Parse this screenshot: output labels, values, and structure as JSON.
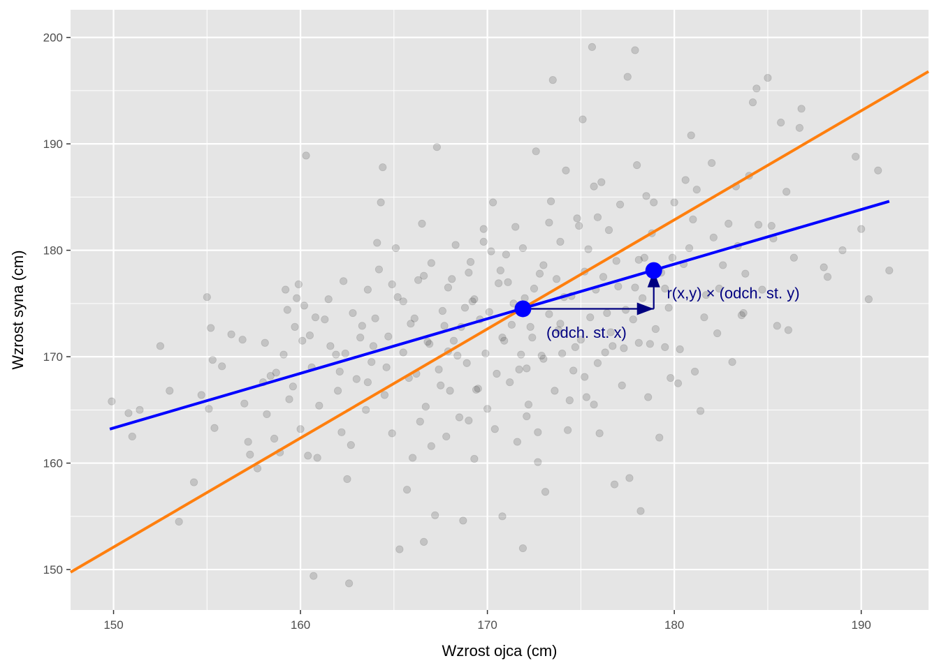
{
  "chart_data": {
    "type": "scatter",
    "xlabel": "Wzrost ojca (cm)",
    "ylabel": "Wzrost syna (cm)",
    "xlim": [
      147.7,
      193.6
    ],
    "ylim": [
      146.2,
      202.6
    ],
    "x_ticks": [
      150,
      160,
      170,
      180,
      190
    ],
    "y_ticks": [
      150,
      160,
      170,
      180,
      190,
      200
    ],
    "x_tick_labels": [
      "150",
      "160",
      "170",
      "180",
      "190"
    ],
    "y_tick_labels": [
      "150",
      "160",
      "170",
      "180",
      "190",
      "200"
    ],
    "grid": true,
    "colors": {
      "panel_bg": "#e5e5e5",
      "grid_major": "#ffffff",
      "points": "#000000",
      "regression": "#0000ff",
      "sd_line": "#ff7f0e",
      "annotation": "#000080"
    },
    "points": {
      "opacity": 0.15,
      "values": [
        [
          149.9,
          165.8
        ],
        [
          150.8,
          164.7
        ],
        [
          151.0,
          162.5
        ],
        [
          151.4,
          165.0
        ],
        [
          152.5,
          171.0
        ],
        [
          153.0,
          166.8
        ],
        [
          153.5,
          154.5
        ],
        [
          154.3,
          158.2
        ],
        [
          154.7,
          166.4
        ],
        [
          155.0,
          175.6
        ],
        [
          155.1,
          165.1
        ],
        [
          155.2,
          172.7
        ],
        [
          155.3,
          169.7
        ],
        [
          155.4,
          163.3
        ],
        [
          155.8,
          169.1
        ],
        [
          156.3,
          172.1
        ],
        [
          156.9,
          171.6
        ],
        [
          157.0,
          165.6
        ],
        [
          157.2,
          162.0
        ],
        [
          157.3,
          160.8
        ],
        [
          157.7,
          159.5
        ],
        [
          158.0,
          167.6
        ],
        [
          158.1,
          171.3
        ],
        [
          158.2,
          164.6
        ],
        [
          158.4,
          168.2
        ],
        [
          158.6,
          162.3
        ],
        [
          158.9,
          161.0
        ],
        [
          159.1,
          170.2
        ],
        [
          159.2,
          176.3
        ],
        [
          159.3,
          174.4
        ],
        [
          159.4,
          166.0
        ],
        [
          159.6,
          167.2
        ],
        [
          159.7,
          172.8
        ],
        [
          159.8,
          175.5
        ],
        [
          159.9,
          176.8
        ],
        [
          160.0,
          163.2
        ],
        [
          160.1,
          171.5
        ],
        [
          160.2,
          174.8
        ],
        [
          160.3,
          188.9
        ],
        [
          160.5,
          172.0
        ],
        [
          160.6,
          169.0
        ],
        [
          160.7,
          149.4
        ],
        [
          160.9,
          160.5
        ],
        [
          161.0,
          165.4
        ],
        [
          161.3,
          173.5
        ],
        [
          161.6,
          171.0
        ],
        [
          161.9,
          170.2
        ],
        [
          162.0,
          166.8
        ],
        [
          162.2,
          162.9
        ],
        [
          162.3,
          177.1
        ],
        [
          162.4,
          170.3
        ],
        [
          162.5,
          158.5
        ],
        [
          162.6,
          148.7
        ],
        [
          162.8,
          174.1
        ],
        [
          163.0,
          167.9
        ],
        [
          163.2,
          171.8
        ],
        [
          163.5,
          165.0
        ],
        [
          163.6,
          176.3
        ],
        [
          163.8,
          169.5
        ],
        [
          164.0,
          173.6
        ],
        [
          164.2,
          178.2
        ],
        [
          164.3,
          184.5
        ],
        [
          164.4,
          187.8
        ],
        [
          164.5,
          166.4
        ],
        [
          164.7,
          171.9
        ],
        [
          164.9,
          162.8
        ],
        [
          165.1,
          180.2
        ],
        [
          165.2,
          175.6
        ],
        [
          165.3,
          151.9
        ],
        [
          165.5,
          170.4
        ],
        [
          165.7,
          157.5
        ],
        [
          165.8,
          168.0
        ],
        [
          166.0,
          160.5
        ],
        [
          166.1,
          173.6
        ],
        [
          166.3,
          177.2
        ],
        [
          166.5,
          182.5
        ],
        [
          166.6,
          152.6
        ],
        [
          166.7,
          165.3
        ],
        [
          166.9,
          171.2
        ],
        [
          167.0,
          178.8
        ],
        [
          167.2,
          155.1
        ],
        [
          167.3,
          189.7
        ],
        [
          167.4,
          168.8
        ],
        [
          167.6,
          174.3
        ],
        [
          167.8,
          162.5
        ],
        [
          167.9,
          176.5
        ],
        [
          168.0,
          166.8
        ],
        [
          168.2,
          171.5
        ],
        [
          168.3,
          180.5
        ],
        [
          168.5,
          164.3
        ],
        [
          168.6,
          172.8
        ],
        [
          168.7,
          154.6
        ],
        [
          168.9,
          169.4
        ],
        [
          169.0,
          177.9
        ],
        [
          169.2,
          175.2
        ],
        [
          169.3,
          160.4
        ],
        [
          169.5,
          167.0
        ],
        [
          169.6,
          173.5
        ],
        [
          169.8,
          182.0
        ],
        [
          169.9,
          170.3
        ],
        [
          170.0,
          165.1
        ],
        [
          170.1,
          174.2
        ],
        [
          170.3,
          184.5
        ],
        [
          170.5,
          168.4
        ],
        [
          170.6,
          176.9
        ],
        [
          170.8,
          155.0
        ],
        [
          170.9,
          171.5
        ],
        [
          171.0,
          179.6
        ],
        [
          171.2,
          167.6
        ],
        [
          171.3,
          173.0
        ],
        [
          171.5,
          182.2
        ],
        [
          171.6,
          162.0
        ],
        [
          171.8,
          170.2
        ],
        [
          171.9,
          152.0
        ],
        [
          172.0,
          175.5
        ],
        [
          172.1,
          168.9
        ],
        [
          172.2,
          165.5
        ],
        [
          172.4,
          171.8
        ],
        [
          172.5,
          176.4
        ],
        [
          172.6,
          189.3
        ],
        [
          172.7,
          160.1
        ],
        [
          172.8,
          177.8
        ],
        [
          173.0,
          169.8
        ],
        [
          173.1,
          157.3
        ],
        [
          173.3,
          174.0
        ],
        [
          173.4,
          184.6
        ],
        [
          173.5,
          196.0
        ],
        [
          173.6,
          166.8
        ],
        [
          173.8,
          172.5
        ],
        [
          173.9,
          180.8
        ],
        [
          174.0,
          170.3
        ],
        [
          174.2,
          187.5
        ],
        [
          174.3,
          163.1
        ],
        [
          174.5,
          175.7
        ],
        [
          174.6,
          168.7
        ],
        [
          174.8,
          183.0
        ],
        [
          175.0,
          171.6
        ],
        [
          175.1,
          192.3
        ],
        [
          175.2,
          178.0
        ],
        [
          175.3,
          166.2
        ],
        [
          175.5,
          173.7
        ],
        [
          175.6,
          199.1
        ],
        [
          175.7,
          186.0
        ],
        [
          175.9,
          169.4
        ],
        [
          176.0,
          162.8
        ],
        [
          176.2,
          177.5
        ],
        [
          176.4,
          174.1
        ],
        [
          176.5,
          181.9
        ],
        [
          176.7,
          171.0
        ],
        [
          176.8,
          158.0
        ],
        [
          177.0,
          176.6
        ],
        [
          177.1,
          184.3
        ],
        [
          177.3,
          170.8
        ],
        [
          177.5,
          196.3
        ],
        [
          177.6,
          158.6
        ],
        [
          177.8,
          173.5
        ],
        [
          177.9,
          198.8
        ],
        [
          178.0,
          188.0
        ],
        [
          178.1,
          171.3
        ],
        [
          178.2,
          155.5
        ],
        [
          178.4,
          179.3
        ],
        [
          178.6,
          166.2
        ],
        [
          178.8,
          181.6
        ],
        [
          179.0,
          172.6
        ],
        [
          179.2,
          162.4
        ],
        [
          179.5,
          176.4
        ],
        [
          179.8,
          168.0
        ],
        [
          180.0,
          184.5
        ],
        [
          180.3,
          170.7
        ],
        [
          180.6,
          186.6
        ],
        [
          180.9,
          190.8
        ],
        [
          181.1,
          168.6
        ],
        [
          181.4,
          164.9
        ],
        [
          181.7,
          175.8
        ],
        [
          182.0,
          188.2
        ],
        [
          182.3,
          172.2
        ],
        [
          182.6,
          178.6
        ],
        [
          182.9,
          182.5
        ],
        [
          183.1,
          169.5
        ],
        [
          183.4,
          180.4
        ],
        [
          183.7,
          174.1
        ],
        [
          184.0,
          187.0
        ],
        [
          184.2,
          193.9
        ],
        [
          184.4,
          195.2
        ],
        [
          184.7,
          176.3
        ],
        [
          185.0,
          196.2
        ],
        [
          185.2,
          182.3
        ],
        [
          185.5,
          172.9
        ],
        [
          185.7,
          192.0
        ],
        [
          186.1,
          172.5
        ],
        [
          186.4,
          179.3
        ],
        [
          186.7,
          191.5
        ],
        [
          186.8,
          193.3
        ],
        [
          188.0,
          178.4
        ],
        [
          188.2,
          177.5
        ],
        [
          189.0,
          180.0
        ],
        [
          189.7,
          188.8
        ],
        [
          190.0,
          182.0
        ],
        [
          190.4,
          175.4
        ],
        [
          190.9,
          187.5
        ],
        [
          191.5,
          178.1
        ],
        [
          165.5,
          175.2
        ],
        [
          166.8,
          171.4
        ],
        [
          168.1,
          177.3
        ],
        [
          169.4,
          166.9
        ],
        [
          170.7,
          178.1
        ],
        [
          172.1,
          164.4
        ],
        [
          173.3,
          182.6
        ],
        [
          174.7,
          170.9
        ],
        [
          175.9,
          183.1
        ],
        [
          177.2,
          167.3
        ],
        [
          178.5,
          185.1
        ],
        [
          179.7,
          174.6
        ],
        [
          164.6,
          169.0
        ],
        [
          166.2,
          168.4
        ],
        [
          167.7,
          172.9
        ],
        [
          169.1,
          178.9
        ],
        [
          170.4,
          163.2
        ],
        [
          171.7,
          168.8
        ],
        [
          173.0,
          178.6
        ],
        [
          174.4,
          165.9
        ],
        [
          175.8,
          176.3
        ],
        [
          177.4,
          174.4
        ],
        [
          178.9,
          184.5
        ],
        [
          180.5,
          178.7
        ],
        [
          163.3,
          172.9
        ],
        [
          164.9,
          176.8
        ],
        [
          166.4,
          163.9
        ],
        [
          167.9,
          170.5
        ],
        [
          169.3,
          175.4
        ],
        [
          170.8,
          171.8
        ],
        [
          172.3,
          172.8
        ],
        [
          173.7,
          177.3
        ],
        [
          175.2,
          168.1
        ],
        [
          176.6,
          172.3
        ],
        [
          178.1,
          179.1
        ],
        [
          179.5,
          170.9
        ],
        [
          181.0,
          182.9
        ],
        [
          182.4,
          176.4
        ],
        [
          183.8,
          177.8
        ],
        [
          162.1,
          168.6
        ],
        [
          163.9,
          171.0
        ],
        [
          165.9,
          173.1
        ],
        [
          167.5,
          167.3
        ],
        [
          168.8,
          174.6
        ],
        [
          170.2,
          179.9
        ],
        [
          171.4,
          175.0
        ],
        [
          172.9,
          170.1
        ],
        [
          174.1,
          175.6
        ],
        [
          175.4,
          180.1
        ],
        [
          176.9,
          179.0
        ],
        [
          178.3,
          175.5
        ],
        [
          179.9,
          179.3
        ],
        [
          181.6,
          173.7
        ],
        [
          183.3,
          186.0
        ],
        [
          158.7,
          168.5
        ],
        [
          161.5,
          175.4
        ],
        [
          163.6,
          167.6
        ],
        [
          166.6,
          177.6
        ],
        [
          168.4,
          170.1
        ],
        [
          171.1,
          177.0
        ],
        [
          173.9,
          173.1
        ],
        [
          176.3,
          170.4
        ],
        [
          177.9,
          176.5
        ],
        [
          180.8,
          180.2
        ],
        [
          182.1,
          181.2
        ],
        [
          184.5,
          182.4
        ],
        [
          186.0,
          185.5
        ],
        [
          160.8,
          173.7
        ],
        [
          164.1,
          180.7
        ],
        [
          169.8,
          180.8
        ],
        [
          171.9,
          180.2
        ],
        [
          174.9,
          182.3
        ],
        [
          176.1,
          186.4
        ],
        [
          179.3,
          177.9
        ],
        [
          181.2,
          185.7
        ],
        [
          185.3,
          181.1
        ],
        [
          162.7,
          161.7
        ],
        [
          167.0,
          161.6
        ],
        [
          169.0,
          164.0
        ],
        [
          172.7,
          162.9
        ],
        [
          175.7,
          165.5
        ],
        [
          178.7,
          171.2
        ],
        [
          180.2,
          167.5
        ],
        [
          183.6,
          173.9
        ],
        [
          160.4,
          160.7
        ]
      ]
    },
    "lines": [
      {
        "color": "orange",
        "x": [
          147.7,
          193.6
        ],
        "y": [
          149.75,
          196.8
        ]
      },
      {
        "color": "blue",
        "x": [
          149.8,
          191.5
        ],
        "y": [
          163.2,
          184.6
        ]
      }
    ],
    "highlight_points": [
      {
        "x": 171.9,
        "y": 174.5
      },
      {
        "x": 178.9,
        "y": 178.1
      }
    ],
    "arrows": [
      {
        "from": [
          171.9,
          174.5
        ],
        "to": [
          178.9,
          174.5
        ]
      },
      {
        "from": [
          178.9,
          174.5
        ],
        "to": [
          178.9,
          178.1
        ]
      }
    ],
    "annotations": [
      {
        "text": "(odch. st. x)",
        "x": 175.3,
        "y": 172.3
      },
      {
        "text": "r(x,y) × (odch. st. y)",
        "x": 179.6,
        "y": 176.0
      }
    ]
  }
}
